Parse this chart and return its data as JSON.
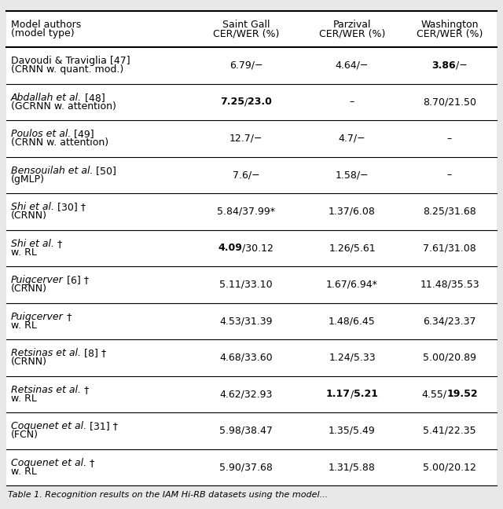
{
  "figsize": [
    6.4,
    6.48
  ],
  "dpi": 100,
  "rows": [
    {
      "col0_line1": "Davoudi & Traviglia [47]",
      "col0_line2": "(CRNN w. quant. mod.)",
      "col0_italic": "",
      "col1": "6.79/−",
      "col2": "4.64/−",
      "col3": "3.86/−",
      "col1_bold": [],
      "col2_bold": [],
      "col3_bold": [
        "3.86"
      ]
    },
    {
      "col0_line1": "Abdallah et al. [48]",
      "col0_line2": "(GCRNN w. attention)",
      "col0_italic": "Abdallah et al.",
      "col1": "7.25/23.0",
      "col2": "–",
      "col3": "8.70/21.50",
      "col1_bold": [
        "7.25",
        "23.0"
      ],
      "col2_bold": [],
      "col3_bold": []
    },
    {
      "col0_line1": "Poulos et al. [49]",
      "col0_line2": "(CRNN w. attention)",
      "col0_italic": "Poulos et al.",
      "col1": "12.7/−",
      "col2": "4.7/−",
      "col3": "–",
      "col1_bold": [],
      "col2_bold": [],
      "col3_bold": []
    },
    {
      "col0_line1": "Bensouilah et al. [50]",
      "col0_line2": "(gMLP)",
      "col0_italic": "Bensouilah et al.",
      "col1": "7.6/−",
      "col2": "1.58/−",
      "col3": "–",
      "col1_bold": [],
      "col2_bold": [],
      "col3_bold": []
    },
    {
      "col0_line1": "Shi et al. [30] †",
      "col0_line2": "(CRNN)",
      "col0_italic": "Shi et al.",
      "col1": "5.84/37.99*",
      "col2": "1.37/6.08",
      "col3": "8.25/31.68",
      "col1_bold": [],
      "col2_bold": [],
      "col3_bold": []
    },
    {
      "col0_line1": "Shi et al. †",
      "col0_line2": "w. RL",
      "col0_italic": "Shi et al.",
      "col1": "4.09/30.12",
      "col2": "1.26/5.61",
      "col3": "7.61/31.08",
      "col1_bold": [
        "4.09"
      ],
      "col2_bold": [],
      "col3_bold": []
    },
    {
      "col0_line1": "Puigcerver [6] †",
      "col0_line2": "(CRNN)",
      "col0_italic": "Puigcerver",
      "col1": "5.11/33.10",
      "col2": "1.67/6.94*",
      "col3": "11.48/35.53",
      "col1_bold": [],
      "col2_bold": [],
      "col3_bold": []
    },
    {
      "col0_line1": "Puigcerver †",
      "col0_line2": "w. RL",
      "col0_italic": "Puigcerver",
      "col1": "4.53/31.39",
      "col2": "1.48/6.45",
      "col3": "6.34/23.37",
      "col1_bold": [],
      "col2_bold": [],
      "col3_bold": []
    },
    {
      "col0_line1": "Retsinas et al. [8] †",
      "col0_line2": "(CRNN)",
      "col0_italic": "Retsinas et al.",
      "col1": "4.68/33.60",
      "col2": "1.24/5.33",
      "col3": "5.00/20.89",
      "col1_bold": [],
      "col2_bold": [],
      "col3_bold": []
    },
    {
      "col0_line1": "Retsinas et al. †",
      "col0_line2": "w. RL",
      "col0_italic": "Retsinas et al.",
      "col1": "4.62/32.93",
      "col2": "1.17/5.21",
      "col3": "4.55/19.52",
      "col1_bold": [],
      "col2_bold": [
        "1.17",
        "5.21"
      ],
      "col3_bold": [
        "19.52"
      ]
    },
    {
      "col0_line1": "Coquenet et al. [31] †",
      "col0_line2": "(FCN)",
      "col0_italic": "Coquenet et al.",
      "col1": "5.98/38.47",
      "col2": "1.35/5.49",
      "col3": "5.41/22.35",
      "col1_bold": [],
      "col2_bold": [],
      "col3_bold": []
    },
    {
      "col0_line1": "Coquenet et al. †",
      "col0_line2": "w. RL",
      "col0_italic": "Coquenet et al.",
      "col1": "5.90/37.68",
      "col2": "1.31/5.88",
      "col3": "5.00/20.12",
      "col1_bold": [],
      "col2_bold": [],
      "col3_bold": []
    }
  ],
  "header_col0_line1": "Model authors",
  "header_col0_line2": "(model type)",
  "header_col1_line1": "Saint Gall",
  "header_col1_line2": "CER/WER (%)",
  "header_col2_line1": "Parzival",
  "header_col2_line2": "CER/WER (%)",
  "header_col3_line1": "Washington",
  "header_col3_line2": "CER/WER (%)",
  "font_size": 9.0,
  "caption_text": "Table 1. Recognition results on the IAM Hi-RB datasets using the model...",
  "bg_color": "#e8e8e8",
  "table_bg": "#ffffff"
}
